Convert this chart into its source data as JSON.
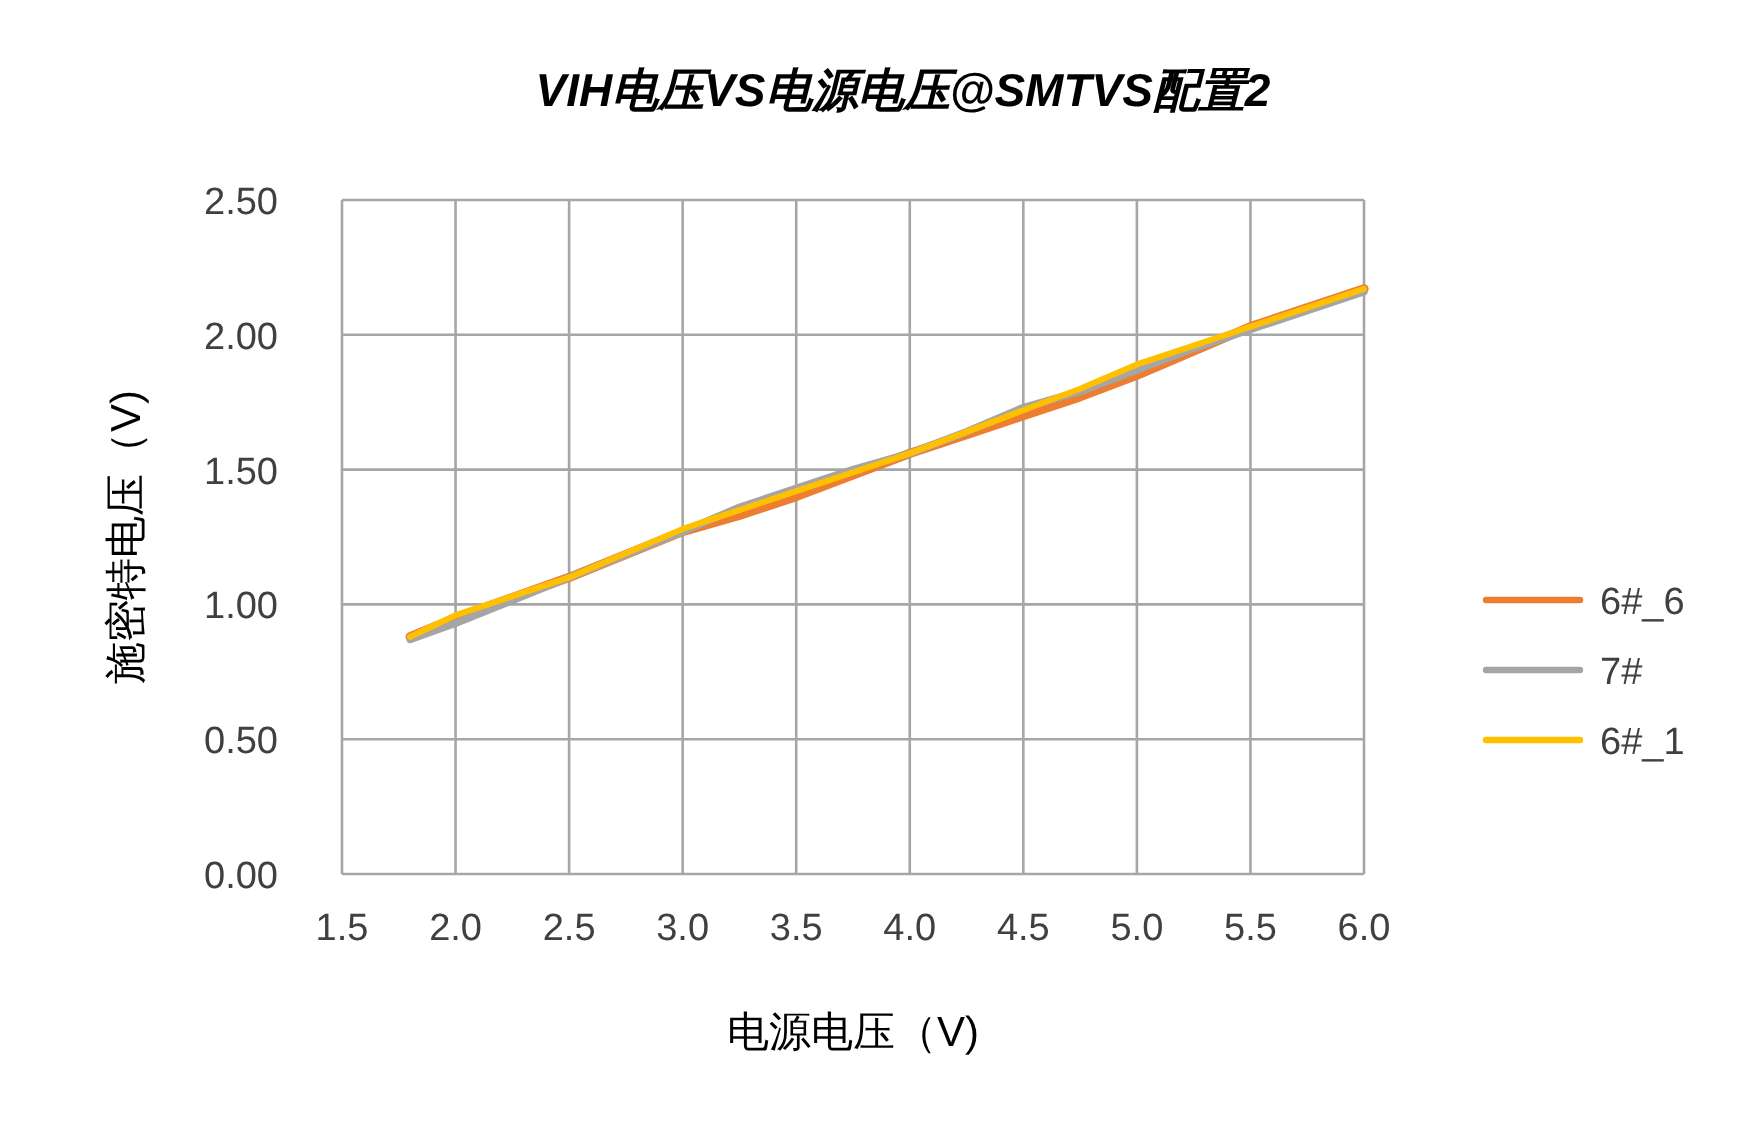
{
  "chart_data": {
    "type": "line",
    "title": "VIH电压VS电源电压@SMTVS配置2",
    "xlabel": "电源电压（V)",
    "ylabel": "施密特电压（V)",
    "x": [
      1.8,
      2.0,
      2.5,
      3.0,
      3.25,
      3.5,
      3.75,
      4.0,
      4.25,
      4.5,
      4.75,
      5.0,
      5.25,
      5.5,
      6.0
    ],
    "xlim": [
      1.5,
      6.0
    ],
    "ylim": [
      0,
      2.5
    ],
    "xticks": [
      {
        "value": 1.5,
        "label": "1.5"
      },
      {
        "value": 2,
        "label": "2.0"
      },
      {
        "value": 2.5,
        "label": "2.5"
      },
      {
        "value": 3,
        "label": "3.0"
      },
      {
        "value": 3.5,
        "label": "3.5"
      },
      {
        "value": 4,
        "label": "4.0"
      },
      {
        "value": 4.5,
        "label": "4.5"
      },
      {
        "value": 5,
        "label": "5.0"
      },
      {
        "value": 5.5,
        "label": "5.5"
      },
      {
        "value": 6,
        "label": "6.0"
      }
    ],
    "yticks": [
      {
        "value": 0,
        "label": "0.00"
      },
      {
        "value": 0.5,
        "label": "0.50"
      },
      {
        "value": 1,
        "label": "1.00"
      },
      {
        "value": 1.5,
        "label": "1.50"
      },
      {
        "value": 2,
        "label": "2.00"
      },
      {
        "value": 2.5,
        "label": "2.50"
      }
    ],
    "grid": true,
    "legend": "right",
    "marker": "none",
    "series": [
      {
        "name": "6#_6",
        "color": "#ed7d31",
        "values": [
          0.88,
          0.95,
          1.1,
          1.27,
          1.33,
          1.4,
          1.48,
          1.56,
          1.63,
          1.7,
          1.77,
          1.85,
          1.94,
          2.03,
          2.17
        ]
      },
      {
        "name": "7#",
        "color": "#a5a5a5",
        "values": [
          0.87,
          0.93,
          1.1,
          1.27,
          1.36,
          1.43,
          1.5,
          1.56,
          1.64,
          1.73,
          1.79,
          1.87,
          1.95,
          2.02,
          2.16
        ]
      },
      {
        "name": "6#_1",
        "color": "#ffc000",
        "values": [
          0.88,
          0.96,
          1.1,
          1.28,
          1.35,
          1.42,
          1.49,
          1.56,
          1.64,
          1.72,
          1.8,
          1.89,
          1.96,
          2.03,
          2.17
        ]
      }
    ]
  }
}
